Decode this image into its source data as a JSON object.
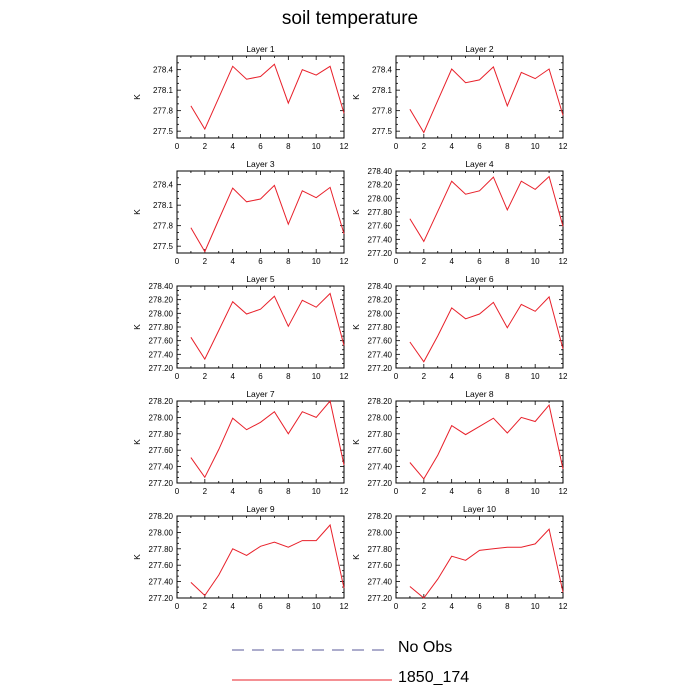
{
  "title": "soil temperature",
  "legend": {
    "placement": "bottom-center",
    "entries": [
      {
        "label": "No Obs",
        "style": "dashed",
        "color": "#5a5a9a"
      },
      {
        "label": "1850_174",
        "style": "solid",
        "color": "#e8202a"
      }
    ]
  },
  "chart_data": [
    {
      "type": "line",
      "title": "Layer 1",
      "ylabel": "K",
      "xlim": [
        0,
        12
      ],
      "ylim": [
        277.4,
        278.6
      ],
      "xticks": [
        0,
        2,
        4,
        6,
        8,
        10,
        12
      ],
      "yticks": [
        277.5,
        277.8,
        278.1,
        278.4
      ],
      "ytick_labels": [
        "277.5",
        "277.8",
        "278.1",
        "278.4"
      ],
      "series": [
        {
          "x": [
            1,
            2,
            3,
            4,
            5,
            6,
            7,
            8,
            9,
            10,
            11,
            12
          ],
          "y": [
            277.87,
            277.53,
            277.99,
            278.45,
            278.26,
            278.3,
            278.48,
            277.91,
            278.4,
            278.32,
            278.45,
            277.76
          ]
        }
      ]
    },
    {
      "type": "line",
      "title": "Layer 2",
      "ylabel": "K",
      "xlim": [
        0,
        12
      ],
      "ylim": [
        277.4,
        278.6
      ],
      "xticks": [
        0,
        2,
        4,
        6,
        8,
        10,
        12
      ],
      "yticks": [
        277.5,
        277.8,
        278.1,
        278.4
      ],
      "ytick_labels": [
        "277.5",
        "277.8",
        "278.1",
        "278.4"
      ],
      "series": [
        {
          "x": [
            1,
            2,
            3,
            4,
            5,
            6,
            7,
            8,
            9,
            10,
            11,
            12
          ],
          "y": [
            277.82,
            277.48,
            277.95,
            278.41,
            278.21,
            278.25,
            278.44,
            277.87,
            278.36,
            278.27,
            278.41,
            277.73
          ]
        }
      ]
    },
    {
      "type": "line",
      "title": "Layer 3",
      "ylabel": "K",
      "xlim": [
        0,
        12
      ],
      "ylim": [
        277.4,
        278.6
      ],
      "xticks": [
        0,
        2,
        4,
        6,
        8,
        10,
        12
      ],
      "yticks": [
        277.5,
        277.8,
        278.1,
        278.4
      ],
      "ytick_labels": [
        "277.5",
        "277.8",
        "278.1",
        "278.4"
      ],
      "series": [
        {
          "x": [
            1,
            2,
            3,
            4,
            5,
            6,
            7,
            8,
            9,
            10,
            11,
            12
          ],
          "y": [
            277.77,
            277.42,
            277.89,
            278.35,
            278.15,
            278.19,
            278.39,
            277.82,
            278.31,
            278.21,
            278.36,
            277.68
          ]
        }
      ]
    },
    {
      "type": "line",
      "title": "Layer 4",
      "ylabel": "K",
      "xlim": [
        0,
        12
      ],
      "ylim": [
        277.2,
        278.4
      ],
      "xticks": [
        0,
        2,
        4,
        6,
        8,
        10,
        12
      ],
      "yticks": [
        277.2,
        277.4,
        277.6,
        277.8,
        278.0,
        278.2,
        278.4
      ],
      "ytick_labels": [
        "277.20",
        "277.40",
        "277.60",
        "277.80",
        "278.00",
        "278.20",
        "278.40"
      ],
      "series": [
        {
          "x": [
            1,
            2,
            3,
            4,
            5,
            6,
            7,
            8,
            9,
            10,
            11,
            12
          ],
          "y": [
            277.7,
            277.37,
            277.81,
            278.25,
            278.06,
            278.11,
            278.31,
            277.83,
            278.25,
            278.13,
            278.32,
            277.59
          ]
        }
      ]
    },
    {
      "type": "line",
      "title": "Layer 5",
      "ylabel": "K",
      "xlim": [
        0,
        12
      ],
      "ylim": [
        277.2,
        278.4
      ],
      "xticks": [
        0,
        2,
        4,
        6,
        8,
        10,
        12
      ],
      "yticks": [
        277.2,
        277.4,
        277.6,
        277.8,
        278.0,
        278.2,
        278.4
      ],
      "ytick_labels": [
        "277.20",
        "277.40",
        "277.60",
        "277.80",
        "278.00",
        "278.20",
        "278.40"
      ],
      "series": [
        {
          "x": [
            1,
            2,
            3,
            4,
            5,
            6,
            7,
            8,
            9,
            10,
            11,
            12
          ],
          "y": [
            277.65,
            277.33,
            277.75,
            278.17,
            277.99,
            278.06,
            278.25,
            277.81,
            278.19,
            278.09,
            278.29,
            277.53
          ]
        }
      ]
    },
    {
      "type": "line",
      "title": "Layer 6",
      "ylabel": "K",
      "xlim": [
        0,
        12
      ],
      "ylim": [
        277.2,
        278.4
      ],
      "xticks": [
        0,
        2,
        4,
        6,
        8,
        10,
        12
      ],
      "yticks": [
        277.2,
        277.4,
        277.6,
        277.8,
        278.0,
        278.2,
        278.4
      ],
      "ytick_labels": [
        "277.20",
        "277.40",
        "277.60",
        "277.80",
        "278.00",
        "278.20",
        "278.40"
      ],
      "series": [
        {
          "x": [
            1,
            2,
            3,
            4,
            5,
            6,
            7,
            8,
            9,
            10,
            11,
            12
          ],
          "y": [
            277.58,
            277.29,
            277.67,
            278.08,
            277.92,
            277.99,
            278.16,
            277.79,
            278.13,
            278.03,
            278.24,
            277.48
          ]
        }
      ]
    },
    {
      "type": "line",
      "title": "Layer 7",
      "ylabel": "K",
      "xlim": [
        0,
        12
      ],
      "ylim": [
        277.2,
        278.2
      ],
      "xticks": [
        0,
        2,
        4,
        6,
        8,
        10,
        12
      ],
      "yticks": [
        277.2,
        277.4,
        277.6,
        277.8,
        278.0,
        278.2
      ],
      "ytick_labels": [
        "277.20",
        "277.40",
        "277.60",
        "277.80",
        "278.00",
        "278.20"
      ],
      "series": [
        {
          "x": [
            1,
            2,
            3,
            4,
            5,
            6,
            7,
            8,
            9,
            10,
            11,
            12
          ],
          "y": [
            277.51,
            277.27,
            277.61,
            277.99,
            277.85,
            277.94,
            278.07,
            277.8,
            278.07,
            278.0,
            278.2,
            277.42
          ]
        }
      ]
    },
    {
      "type": "line",
      "title": "Layer 8",
      "ylabel": "K",
      "xlim": [
        0,
        12
      ],
      "ylim": [
        277.2,
        278.2
      ],
      "xticks": [
        0,
        2,
        4,
        6,
        8,
        10,
        12
      ],
      "yticks": [
        277.2,
        277.4,
        277.6,
        277.8,
        278.0,
        278.2
      ],
      "ytick_labels": [
        "277.20",
        "277.40",
        "277.60",
        "277.80",
        "278.00",
        "278.20"
      ],
      "series": [
        {
          "x": [
            1,
            2,
            3,
            4,
            5,
            6,
            7,
            8,
            9,
            10,
            11,
            12
          ],
          "y": [
            277.45,
            277.25,
            277.54,
            277.9,
            277.79,
            277.89,
            277.99,
            277.81,
            278.0,
            277.95,
            278.15,
            277.37
          ]
        }
      ]
    },
    {
      "type": "line",
      "title": "Layer 9",
      "ylabel": "K",
      "xlim": [
        0,
        12
      ],
      "ylim": [
        277.2,
        278.2
      ],
      "xticks": [
        0,
        2,
        4,
        6,
        8,
        10,
        12
      ],
      "yticks": [
        277.2,
        277.4,
        277.6,
        277.8,
        278.0,
        278.2
      ],
      "ytick_labels": [
        "277.20",
        "277.40",
        "277.60",
        "277.80",
        "278.00",
        "278.20"
      ],
      "series": [
        {
          "x": [
            1,
            2,
            3,
            4,
            5,
            6,
            7,
            8,
            9,
            10,
            11,
            12
          ],
          "y": [
            277.39,
            277.23,
            277.48,
            277.8,
            277.72,
            277.83,
            277.88,
            277.82,
            277.9,
            277.9,
            278.09,
            277.32
          ]
        }
      ]
    },
    {
      "type": "line",
      "title": "Layer 10",
      "ylabel": "K",
      "xlim": [
        0,
        12
      ],
      "ylim": [
        277.2,
        278.2
      ],
      "xticks": [
        0,
        2,
        4,
        6,
        8,
        10,
        12
      ],
      "yticks": [
        277.2,
        277.4,
        277.6,
        277.8,
        278.0,
        278.2
      ],
      "ytick_labels": [
        "277.20",
        "277.40",
        "277.60",
        "277.80",
        "278.00",
        "278.20"
      ],
      "series": [
        {
          "x": [
            1,
            2,
            3,
            4,
            5,
            6,
            7,
            8,
            9,
            10,
            11,
            12
          ],
          "y": [
            277.34,
            277.2,
            277.43,
            277.71,
            277.66,
            277.78,
            277.8,
            277.82,
            277.82,
            277.86,
            278.04,
            277.27
          ]
        }
      ]
    }
  ]
}
